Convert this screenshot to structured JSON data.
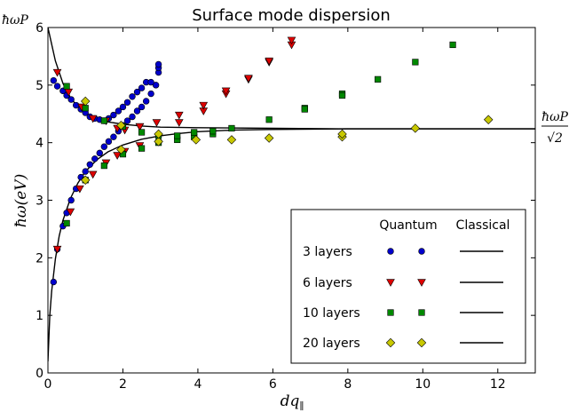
{
  "chart_data": {
    "type": "scatter",
    "title": "Surface mode dispersion",
    "xlabel": "dq‖",
    "ylabel": "ħω(eV)",
    "xlim": [
      0,
      13
    ],
    "ylim": [
      0,
      6
    ],
    "xticks": [
      0,
      2,
      4,
      6,
      8,
      10,
      12
    ],
    "yticks": [
      0,
      1,
      2,
      3,
      4,
      5,
      6
    ],
    "ytick_top_label": "ħωP",
    "right_annotation": {
      "numerator": "ħωP",
      "denominator": "√2"
    },
    "grid": false,
    "legend": {
      "placement": "bottom-right",
      "headers": [
        "Quantum",
        "Classical"
      ],
      "entries": [
        "3 layers",
        "6 layers",
        "10 layers",
        "20 layers"
      ]
    },
    "classical": {
      "plasma_energy": 6.0,
      "asymptote": 4.24,
      "upper_branch": [
        [
          0,
          6.0
        ],
        [
          0.2,
          5.42
        ],
        [
          0.4,
          5.03
        ],
        [
          0.6,
          4.78
        ],
        [
          0.8,
          4.62
        ],
        [
          1.0,
          4.51
        ],
        [
          1.3,
          4.42
        ],
        [
          1.6,
          4.36
        ],
        [
          2.0,
          4.32
        ],
        [
          2.5,
          4.29
        ],
        [
          3.0,
          4.27
        ],
        [
          4.0,
          4.26
        ],
        [
          6.0,
          4.25
        ],
        [
          8.0,
          4.24
        ],
        [
          13.0,
          4.24
        ]
      ],
      "lower_branch": [
        [
          0,
          0.2
        ],
        [
          0.05,
          1.0
        ],
        [
          0.1,
          1.42
        ],
        [
          0.2,
          1.98
        ],
        [
          0.3,
          2.38
        ],
        [
          0.4,
          2.65
        ],
        [
          0.6,
          3.03
        ],
        [
          0.8,
          3.3
        ],
        [
          1.0,
          3.5
        ],
        [
          1.3,
          3.7
        ],
        [
          1.6,
          3.84
        ],
        [
          2.0,
          3.96
        ],
        [
          2.5,
          4.06
        ],
        [
          3.0,
          4.12
        ],
        [
          3.5,
          4.16
        ],
        [
          4.0,
          4.19
        ],
        [
          5.0,
          4.22
        ],
        [
          6.0,
          4.23
        ],
        [
          8.0,
          4.24
        ],
        [
          13.0,
          4.24
        ]
      ]
    },
    "series": [
      {
        "name": "3 layers",
        "marker": "circle",
        "color": "#0000cc",
        "points": [
          [
            0.15,
            1.58
          ],
          [
            0.25,
            2.15
          ],
          [
            0.4,
            2.55
          ],
          [
            0.5,
            2.78
          ],
          [
            0.62,
            3.0
          ],
          [
            0.75,
            3.2
          ],
          [
            0.88,
            3.4
          ],
          [
            1.0,
            3.5
          ],
          [
            1.12,
            3.62
          ],
          [
            1.25,
            3.72
          ],
          [
            1.38,
            3.82
          ],
          [
            1.5,
            3.93
          ],
          [
            1.62,
            4.02
          ],
          [
            1.75,
            4.1
          ],
          [
            1.88,
            4.2
          ],
          [
            2.0,
            4.3
          ],
          [
            2.12,
            4.38
          ],
          [
            2.25,
            4.45
          ],
          [
            2.38,
            4.55
          ],
          [
            2.5,
            4.62
          ],
          [
            2.62,
            4.72
          ],
          [
            2.75,
            4.85
          ],
          [
            2.88,
            5.0
          ],
          [
            2.95,
            5.22
          ],
          [
            2.95,
            5.3
          ],
          [
            2.95,
            5.36
          ],
          [
            0.15,
            5.08
          ],
          [
            0.25,
            4.98
          ],
          [
            0.4,
            4.9
          ],
          [
            0.5,
            4.82
          ],
          [
            0.62,
            4.75
          ],
          [
            0.75,
            4.65
          ],
          [
            0.88,
            4.58
          ],
          [
            1.0,
            4.52
          ],
          [
            1.12,
            4.45
          ],
          [
            1.25,
            4.42
          ],
          [
            1.38,
            4.4
          ],
          [
            1.5,
            4.38
          ],
          [
            1.62,
            4.42
          ],
          [
            1.75,
            4.48
          ],
          [
            1.88,
            4.55
          ],
          [
            2.0,
            4.62
          ],
          [
            2.12,
            4.7
          ],
          [
            2.25,
            4.8
          ],
          [
            2.38,
            4.88
          ],
          [
            2.5,
            4.95
          ],
          [
            2.62,
            5.05
          ],
          [
            2.75,
            5.05
          ]
        ]
      },
      {
        "name": "6 layers",
        "marker": "triangle",
        "color": "#dd0000",
        "points": [
          [
            0.25,
            2.15
          ],
          [
            0.6,
            2.8
          ],
          [
            0.85,
            3.2
          ],
          [
            1.2,
            3.45
          ],
          [
            1.55,
            3.65
          ],
          [
            1.85,
            3.78
          ],
          [
            2.05,
            3.85
          ],
          [
            2.45,
            3.95
          ],
          [
            2.45,
            4.28
          ],
          [
            2.9,
            4.35
          ],
          [
            3.5,
            4.35
          ],
          [
            3.5,
            4.48
          ],
          [
            4.15,
            4.55
          ],
          [
            4.15,
            4.65
          ],
          [
            4.75,
            4.85
          ],
          [
            4.75,
            4.9
          ],
          [
            5.35,
            5.1
          ],
          [
            5.35,
            5.12
          ],
          [
            5.9,
            5.4
          ],
          [
            5.9,
            5.42
          ],
          [
            6.5,
            5.7
          ],
          [
            6.5,
            5.78
          ],
          [
            0.25,
            5.22
          ],
          [
            0.55,
            4.88
          ],
          [
            0.9,
            4.62
          ],
          [
            1.2,
            4.42
          ],
          [
            1.55,
            4.38
          ],
          [
            1.85,
            4.25
          ],
          [
            2.05,
            4.22
          ],
          [
            2.45,
            4.28
          ]
        ]
      },
      {
        "name": "10 layers",
        "marker": "square",
        "color": "#008800",
        "points": [
          [
            0.5,
            2.6
          ],
          [
            1.0,
            3.35
          ],
          [
            1.5,
            3.6
          ],
          [
            2.0,
            3.8
          ],
          [
            2.5,
            3.9
          ],
          [
            2.95,
            4.0
          ],
          [
            3.45,
            4.05
          ],
          [
            3.9,
            4.1
          ],
          [
            4.4,
            4.15
          ],
          [
            4.9,
            4.25
          ],
          [
            5.9,
            4.4
          ],
          [
            6.85,
            4.6
          ],
          [
            7.85,
            4.85
          ],
          [
            8.8,
            5.1
          ],
          [
            9.8,
            5.4
          ],
          [
            10.8,
            5.7
          ],
          [
            0.5,
            4.98
          ],
          [
            1.0,
            4.6
          ],
          [
            1.5,
            4.38
          ],
          [
            2.0,
            4.28
          ],
          [
            2.5,
            4.18
          ],
          [
            2.95,
            4.12
          ],
          [
            3.45,
            4.12
          ],
          [
            3.9,
            4.18
          ],
          [
            4.4,
            4.2
          ],
          [
            6.85,
            4.58
          ],
          [
            7.85,
            4.82
          ]
        ]
      },
      {
        "name": "20 layers",
        "marker": "diamond",
        "color": "#c8c800",
        "points": [
          [
            1.0,
            3.35
          ],
          [
            1.95,
            3.88
          ],
          [
            2.95,
            4.02
          ],
          [
            2.95,
            4.15
          ],
          [
            3.95,
            4.05
          ],
          [
            4.9,
            4.05
          ],
          [
            5.9,
            4.08
          ],
          [
            7.85,
            4.1
          ],
          [
            7.85,
            4.15
          ],
          [
            9.8,
            4.25
          ],
          [
            11.75,
            4.4
          ],
          [
            1.0,
            4.72
          ],
          [
            1.95,
            4.3
          ]
        ]
      }
    ]
  }
}
